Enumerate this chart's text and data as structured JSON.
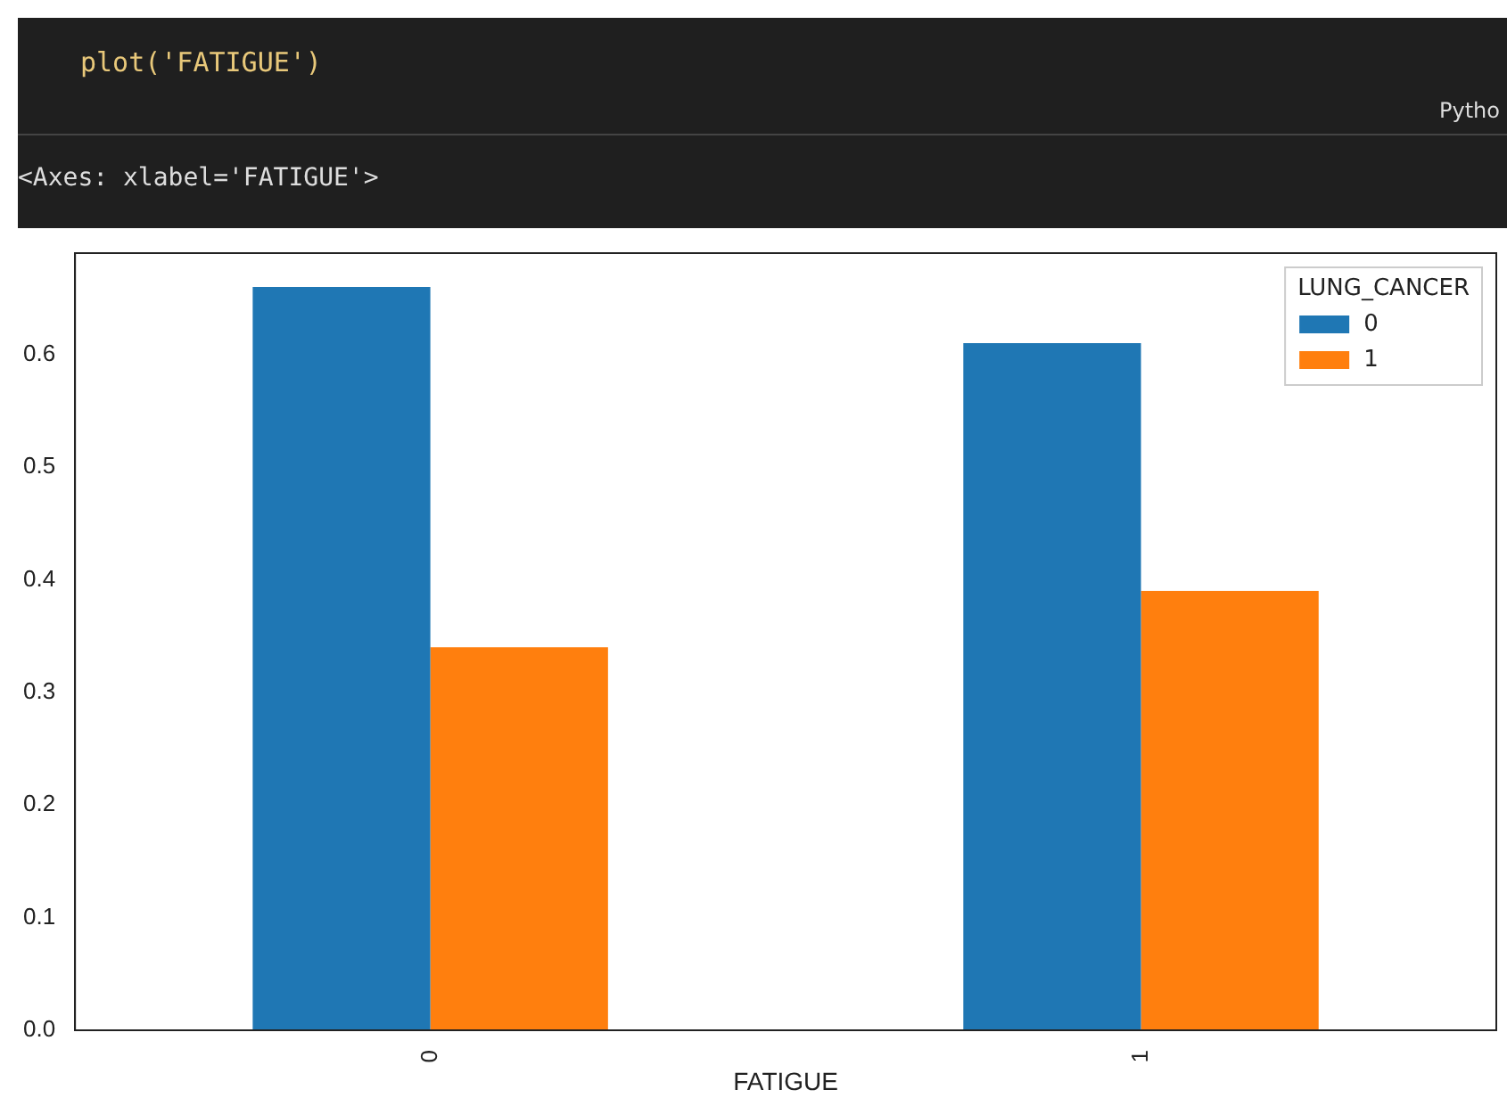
{
  "chart_data": {
    "type": "bar",
    "xlabel": "FATIGUE",
    "legend_title": "LUNG_CANCER",
    "legend": "top right",
    "categories": [
      "0",
      "1"
    ],
    "series": [
      {
        "name": "0",
        "color": "#1f77b4",
        "values": [
          0.66,
          0.61
        ]
      },
      {
        "name": "1",
        "color": "#ff7f0e",
        "values": [
          0.34,
          0.39
        ]
      }
    ],
    "ylim": [
      0,
      0.69
    ],
    "yticks": [
      {
        "value": 0,
        "label": "0.0"
      },
      {
        "value": 0.1,
        "label": "0.1"
      },
      {
        "value": 0.2,
        "label": "0.2"
      },
      {
        "value": 0.3,
        "label": "0.3"
      },
      {
        "value": 0.4,
        "label": "0.4"
      },
      {
        "value": 0.5,
        "label": "0.5"
      },
      {
        "value": 0.6,
        "label": "0.6"
      }
    ],
    "grid": false,
    "annotations": [
      "plot('FATIGUE')",
      "Pytho",
      "<Axes: xlabel='FATIGUE'>"
    ]
  }
}
